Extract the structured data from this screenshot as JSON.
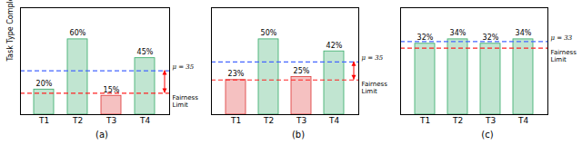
{
  "chart_data": [
    {
      "type": "bar",
      "title": "(a)",
      "categories": [
        "T1",
        "T2",
        "T3",
        "T4"
      ],
      "values": [
        20,
        60,
        15,
        45
      ],
      "value_labels": [
        "20%",
        "60%",
        "15%",
        "45%"
      ],
      "data_labels": true,
      "colors": [
        "#33aa66",
        "#33aa66",
        "#dd3333",
        "#33aa66"
      ],
      "ylabel": "Task Type Completion Rate",
      "ylim": [
        0,
        85.2
      ],
      "yticks": [],
      "tick_labels": "x",
      "reference_lines": [
        {
          "y": 35,
          "label": "μ = 35",
          "color": "#4466ff"
        },
        {
          "y": 17,
          "label": "Fairness\nLimit",
          "color": "#ff2222"
        }
      ],
      "arrow": [
        17,
        35
      ]
    },
    {
      "type": "bar",
      "title": "(b)",
      "categories": [
        "T1",
        "T2",
        "T3",
        "T4"
      ],
      "values": [
        23,
        50,
        25,
        42
      ],
      "value_labels": [
        "23%",
        "50%",
        "25%",
        "42%"
      ],
      "data_labels": true,
      "colors": [
        "#dd3333",
        "#33aa66",
        "#dd3333",
        "#33aa66"
      ],
      "ylim": [
        0,
        71
      ],
      "yticks": [],
      "tick_labels": "x",
      "reference_lines": [
        {
          "y": 35,
          "label": "μ = 35",
          "color": "#4466ff"
        },
        {
          "y": 23,
          "label": "Fairness\nLimit",
          "color": "#ff2222"
        }
      ],
      "arrow": [
        23,
        35
      ]
    },
    {
      "type": "bar",
      "title": "(c)",
      "categories": [
        "T1",
        "T2",
        "T3",
        "T4"
      ],
      "values": [
        32,
        34,
        32,
        34
      ],
      "value_labels": [
        "32%",
        "34%",
        "32%",
        "34%"
      ],
      "data_labels": true,
      "colors": [
        "#33aa66",
        "#33aa66",
        "#33aa66",
        "#33aa66"
      ],
      "ylim": [
        0,
        48.28
      ],
      "yticks": [],
      "tick_labels": "x",
      "reference_lines": [
        {
          "y": 33,
          "label": "μ = 33",
          "color": "#4466ff"
        },
        {
          "y": 30,
          "label": "Fairness\nLimit",
          "color": "#ff2222"
        }
      ]
    }
  ]
}
